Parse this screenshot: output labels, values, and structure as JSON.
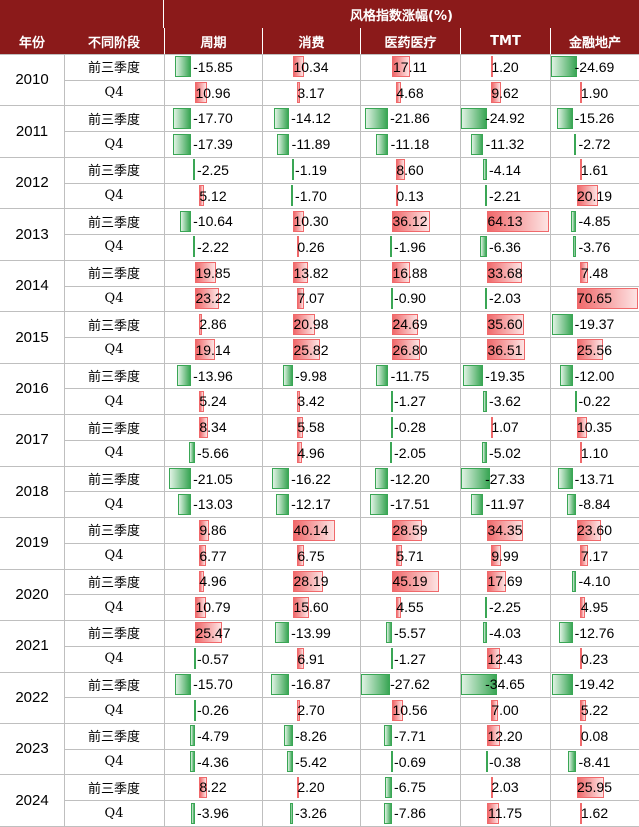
{
  "chart_data": {
    "type": "table",
    "title": "风格指数涨幅(%)",
    "headers": {
      "year": "年份",
      "stage": "不同阶段",
      "columns": [
        "周期",
        "消费",
        "医药医疗",
        "TMT",
        "金融地产"
      ]
    },
    "years": [
      "2010",
      "2011",
      "2012",
      "2013",
      "2014",
      "2015",
      "2016",
      "2017",
      "2018",
      "2019",
      "2020",
      "2021",
      "2022",
      "2023",
      "2024"
    ],
    "stages": [
      "前三季度",
      "Q4"
    ],
    "rows": [
      {
        "year": "2010",
        "stage": "前三季度",
        "values": [
          -15.85,
          10.34,
          17.11,
          1.2,
          -24.69
        ]
      },
      {
        "year": "2010",
        "stage": "Q4",
        "values": [
          10.96,
          3.17,
          4.68,
          9.62,
          1.9
        ]
      },
      {
        "year": "2011",
        "stage": "前三季度",
        "values": [
          -17.7,
          -14.12,
          -21.86,
          -24.92,
          -15.26
        ]
      },
      {
        "year": "2011",
        "stage": "Q4",
        "values": [
          -17.39,
          -11.89,
          -11.18,
          -11.32,
          -2.72
        ]
      },
      {
        "year": "2012",
        "stage": "前三季度",
        "values": [
          -2.25,
          -1.19,
          8.6,
          -4.14,
          1.61
        ]
      },
      {
        "year": "2012",
        "stage": "Q4",
        "values": [
          5.12,
          -1.7,
          0.13,
          -2.21,
          20.19
        ]
      },
      {
        "year": "2013",
        "stage": "前三季度",
        "values": [
          -10.64,
          10.3,
          36.12,
          64.13,
          -4.85
        ]
      },
      {
        "year": "2013",
        "stage": "Q4",
        "values": [
          -2.22,
          0.26,
          -1.96,
          -6.36,
          -3.76
        ]
      },
      {
        "year": "2014",
        "stage": "前三季度",
        "values": [
          19.85,
          13.82,
          16.88,
          33.68,
          7.48
        ]
      },
      {
        "year": "2014",
        "stage": "Q4",
        "values": [
          23.22,
          7.07,
          -0.9,
          -2.03,
          70.65
        ]
      },
      {
        "year": "2015",
        "stage": "前三季度",
        "values": [
          2.86,
          20.98,
          24.69,
          35.6,
          -19.37
        ]
      },
      {
        "year": "2015",
        "stage": "Q4",
        "values": [
          19.14,
          25.82,
          26.8,
          36.51,
          25.56
        ]
      },
      {
        "year": "2016",
        "stage": "前三季度",
        "values": [
          -13.96,
          -9.98,
          -11.75,
          -19.35,
          -12.0
        ]
      },
      {
        "year": "2016",
        "stage": "Q4",
        "values": [
          5.24,
          3.42,
          -1.27,
          -3.62,
          -0.22
        ]
      },
      {
        "year": "2017",
        "stage": "前三季度",
        "values": [
          8.34,
          5.58,
          -0.28,
          1.07,
          10.35
        ]
      },
      {
        "year": "2017",
        "stage": "Q4",
        "values": [
          -5.66,
          4.96,
          -2.05,
          -5.02,
          1.1
        ]
      },
      {
        "year": "2018",
        "stage": "前三季度",
        "values": [
          -21.05,
          -16.22,
          -12.2,
          -27.33,
          -13.71
        ]
      },
      {
        "year": "2018",
        "stage": "Q4",
        "values": [
          -13.03,
          -12.17,
          -17.51,
          -11.97,
          -8.84
        ]
      },
      {
        "year": "2019",
        "stage": "前三季度",
        "values": [
          9.86,
          40.14,
          28.59,
          34.35,
          23.6
        ]
      },
      {
        "year": "2019",
        "stage": "Q4",
        "values": [
          6.77,
          6.75,
          5.71,
          9.99,
          7.17
        ]
      },
      {
        "year": "2020",
        "stage": "前三季度",
        "values": [
          4.96,
          28.19,
          45.19,
          17.69,
          -4.1
        ]
      },
      {
        "year": "2020",
        "stage": "Q4",
        "values": [
          10.79,
          15.6,
          4.55,
          -2.25,
          4.95
        ]
      },
      {
        "year": "2021",
        "stage": "前三季度",
        "values": [
          25.47,
          -13.99,
          -5.57,
          -4.03,
          -12.76
        ]
      },
      {
        "year": "2021",
        "stage": "Q4",
        "values": [
          -0.57,
          6.91,
          -1.27,
          12.43,
          0.23
        ]
      },
      {
        "year": "2022",
        "stage": "前三季度",
        "values": [
          -15.7,
          -16.87,
          -27.62,
          -34.65,
          -19.42
        ]
      },
      {
        "year": "2022",
        "stage": "Q4",
        "values": [
          -0.26,
          2.7,
          10.56,
          7.0,
          5.22
        ]
      },
      {
        "year": "2023",
        "stage": "前三季度",
        "values": [
          -4.79,
          -8.26,
          -7.71,
          12.2,
          0.08
        ]
      },
      {
        "year": "2023",
        "stage": "Q4",
        "values": [
          -4.36,
          -5.42,
          -0.69,
          -0.38,
          -8.41
        ]
      },
      {
        "year": "2024",
        "stage": "前三季度",
        "values": [
          8.22,
          2.2,
          -6.75,
          2.03,
          25.95
        ]
      },
      {
        "year": "2024",
        "stage": "Q4",
        "values": [
          -3.96,
          -3.26,
          -7.86,
          11.75,
          1.62
        ]
      }
    ],
    "display_values": [
      [
        "-15.85",
        "10.34",
        "17.11",
        "1.20",
        "-24.69"
      ],
      [
        "10.96",
        "3.17",
        "4.68",
        "9.62",
        "1.90"
      ],
      [
        "-17.70",
        "-14.12",
        "-21.86",
        "-24.92",
        "-15.26"
      ],
      [
        "-17.39",
        "-11.89",
        "-11.18",
        "-11.32",
        "-2.72"
      ],
      [
        "-2.25",
        "-1.19",
        "8.60",
        "-4.14",
        "1.61"
      ],
      [
        "5.12",
        "-1.70",
        "0.13",
        "-2.21",
        "20.19"
      ],
      [
        "-10.64",
        "10.30",
        "36.12",
        "64.13",
        "-4.85"
      ],
      [
        "-2.22",
        "0.26",
        "-1.96",
        "-6.36",
        "-3.76"
      ],
      [
        "19.85",
        "13.82",
        "16.88",
        "33.68",
        "7.48"
      ],
      [
        "23.22",
        "7.07",
        "-0.90",
        "-2.03",
        "70.65"
      ],
      [
        "2.86",
        "20.98",
        "24.69",
        "35.60",
        "-19.37"
      ],
      [
        "19.14",
        "25.82",
        "26.80",
        "36.51",
        "25.56"
      ],
      [
        "-13.96",
        "-9.98",
        "-11.75",
        "-19.35",
        "-12.00"
      ],
      [
        "5.24",
        "3.42",
        "-1.27",
        "-3.62",
        "-0.22"
      ],
      [
        "8.34",
        "5.58",
        "-0.28",
        "1.07",
        "10.35"
      ],
      [
        "-5.66",
        "4.96",
        "-2.05",
        "-5.02",
        "1.10"
      ],
      [
        "-21.05",
        "-16.22",
        "-12.20",
        "-27.33",
        "-13.71"
      ],
      [
        "-13.03",
        "-12.17",
        "-17.51",
        "-11.97",
        "-8.84"
      ],
      [
        "9.86",
        "40.14",
        "28.59",
        "34.35",
        "23.60"
      ],
      [
        "6.77",
        "6.75",
        "5.71",
        "9.99",
        "7.17"
      ],
      [
        "4.96",
        "28.19",
        "45.19",
        "17.69",
        "-4.10"
      ],
      [
        "10.79",
        "15.60",
        "4.55",
        "-2.25",
        "4.95"
      ],
      [
        "25.47",
        "-13.99",
        "-5.57",
        "-4.03",
        "-12.76"
      ],
      [
        "-0.57",
        "6.91",
        "-1.27",
        "12.43",
        "0.23"
      ],
      [
        "-15.70",
        "-16.87",
        "-27.62",
        "-34.65",
        "-19.42"
      ],
      [
        "-0.26",
        "2.70",
        "10.56",
        "7.00",
        "5.22"
      ],
      [
        "-4.79",
        "-8.26",
        "-7.71",
        "12.20",
        "0.08"
      ],
      [
        "-4.36",
        "-5.42",
        "-0.69",
        "-0.38",
        "-8.41"
      ],
      [
        "8.22",
        "2.20",
        "-6.75",
        "2.03",
        "25.95"
      ],
      [
        "-3.96",
        "-3.26",
        "-7.86",
        "11.75",
        "1.62"
      ]
    ],
    "colors": {
      "header_bg": "#8b1a1a",
      "header_text": "#ffffff",
      "positive_bar": "#f0696b",
      "negative_bar": "#3aa655",
      "grid": "#bfbfbf"
    }
  }
}
